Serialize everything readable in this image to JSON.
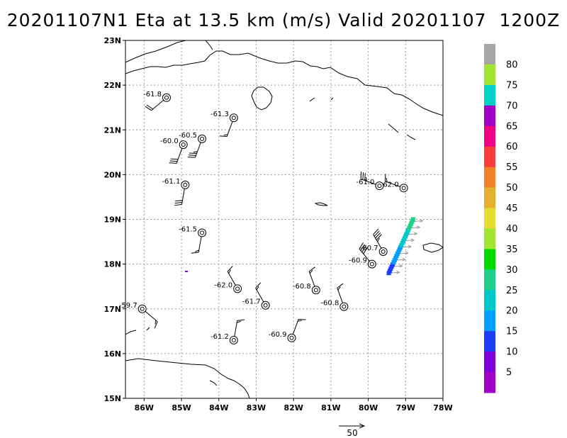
{
  "title": "20201107N1 Eta at 13.5 km (m/s) Valid 20201107  1200Z",
  "map": {
    "lon_range": [
      -86.5,
      -78.0
    ],
    "lat_range": [
      15.0,
      23.0
    ],
    "x_ticks": [
      {
        "lon": -86,
        "label": "86W"
      },
      {
        "lon": -85,
        "label": "85W"
      },
      {
        "lon": -84,
        "label": "84W"
      },
      {
        "lon": -83,
        "label": "83W"
      },
      {
        "lon": -82,
        "label": "82W"
      },
      {
        "lon": -81,
        "label": "81W"
      },
      {
        "lon": -80,
        "label": "80W"
      },
      {
        "lon": -79,
        "label": "79W"
      },
      {
        "lon": -78,
        "label": "78W"
      }
    ],
    "y_ticks": [
      {
        "lat": 15,
        "label": "15N"
      },
      {
        "lat": 16,
        "label": "16N"
      },
      {
        "lat": 17,
        "label": "17N"
      },
      {
        "lat": 18,
        "label": "18N"
      },
      {
        "lat": 19,
        "label": "19N"
      },
      {
        "lat": 20,
        "label": "20N"
      },
      {
        "lat": 21,
        "label": "21N"
      },
      {
        "lat": 22,
        "label": "22N"
      },
      {
        "lat": 23,
        "label": "23N"
      }
    ],
    "grid": "dotted",
    "coastline": "black"
  },
  "observations": [
    {
      "lon": -85.4,
      "lat": 21.72,
      "label": "-61.8",
      "wind_dir": 230,
      "wind_speed": 20
    },
    {
      "lon": -83.6,
      "lat": 21.27,
      "label": "-61.3",
      "wind_dir": 200,
      "wind_speed": 15
    },
    {
      "lon": -84.45,
      "lat": 20.8,
      "label": "-60.5",
      "wind_dir": 200,
      "wind_speed": 35
    },
    {
      "lon": -84.95,
      "lat": 20.67,
      "label": "-60.0",
      "wind_dir": 200,
      "wind_speed": 30
    },
    {
      "lon": -84.9,
      "lat": 19.77,
      "label": "-61.1",
      "wind_dir": 190,
      "wind_speed": 30
    },
    {
      "lon": -84.45,
      "lat": 18.7,
      "label": "-61.5",
      "wind_dir": 190,
      "wind_speed": 15
    },
    {
      "lon": -86.05,
      "lat": 17.0,
      "label": "-59.7",
      "wind_dir": 130,
      "wind_speed": 15
    },
    {
      "lon": -83.5,
      "lat": 17.45,
      "label": "-62.0",
      "wind_dir": 330,
      "wind_speed": 15
    },
    {
      "lon": -82.75,
      "lat": 17.08,
      "label": "-61.7",
      "wind_dir": 330,
      "wind_speed": 15
    },
    {
      "lon": -81.4,
      "lat": 17.42,
      "label": "-60.8",
      "wind_dir": 340,
      "wind_speed": 15
    },
    {
      "lon": -80.65,
      "lat": 17.05,
      "label": "-60.8",
      "wind_dir": 340,
      "wind_speed": 15
    },
    {
      "lon": -83.6,
      "lat": 16.3,
      "label": "-61.2",
      "wind_dir": 10,
      "wind_speed": 15
    },
    {
      "lon": -82.05,
      "lat": 16.35,
      "label": "-60.9",
      "wind_dir": 20,
      "wind_speed": 15
    },
    {
      "lon": -79.7,
      "lat": 19.75,
      "label": "-61.0",
      "wind_dir": 290,
      "wind_speed": 35
    },
    {
      "lon": -79.05,
      "lat": 19.7,
      "label": "62.0",
      "wind_dir": 290,
      "wind_speed": 15
    },
    {
      "lon": -79.6,
      "lat": 18.28,
      "label": "-60.7",
      "wind_dir": 330,
      "wind_speed": 45
    },
    {
      "lon": -79.9,
      "lat": 18.0,
      "label": "-60.9",
      "wind_dir": 320,
      "wind_speed": 40
    }
  ],
  "radial_winds": {
    "start": [
      -79.45,
      17.8
    ],
    "end": [
      -78.8,
      19.0
    ],
    "count": 26
  },
  "colorbar": {
    "levels": [
      {
        "label": "80",
        "color": "#a6a6a6"
      },
      {
        "label": "75",
        "color": "#a0e632"
      },
      {
        "label": "70",
        "color": "#00d2c8"
      },
      {
        "label": "65",
        "color": "#a000c8"
      },
      {
        "label": "60",
        "color": "#f00082"
      },
      {
        "label": "55",
        "color": "#fa3c3c"
      },
      {
        "label": "50",
        "color": "#f08228"
      },
      {
        "label": "45",
        "color": "#e6af2d"
      },
      {
        "label": "40",
        "color": "#e6dc32"
      },
      {
        "label": "35",
        "color": "#a0e632"
      },
      {
        "label": "30",
        "color": "#00dc00"
      },
      {
        "label": "25",
        "color": "#1ed28c"
      },
      {
        "label": "20",
        "color": "#00c8c8"
      },
      {
        "label": "15",
        "color": "#00a0ff"
      },
      {
        "label": "10",
        "color": "#1e3cff"
      },
      {
        "label": "5",
        "color": "#8200dc"
      },
      {
        "label": "",
        "color": "#a000c8"
      }
    ]
  },
  "reference_vector": {
    "label": "50"
  }
}
